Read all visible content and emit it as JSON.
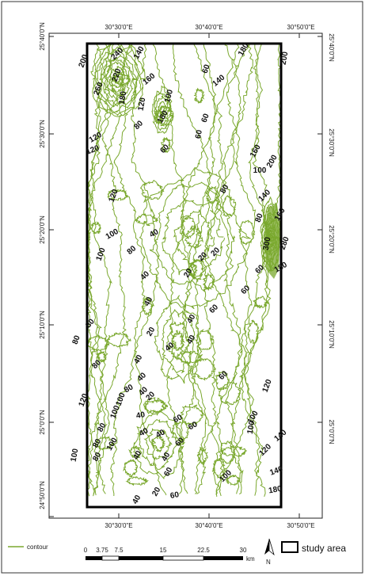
{
  "map": {
    "lon_ticks": [
      "30°30'0\"E",
      "30°40'0\"E",
      "30°50'0\"E"
    ],
    "lat_ticks": [
      "25°40'0\"N",
      "25°30'0\"N",
      "25°20'0\"N",
      "25°10'0\"N",
      "25°0'0\"N",
      "24°50'0\"N"
    ],
    "contour_color": "#7aa82e",
    "contour_labels": [
      {
        "text": "200"
      },
      {
        "text": "240"
      },
      {
        "text": "140"
      },
      {
        "text": "180"
      },
      {
        "text": "200"
      },
      {
        "text": "220"
      },
      {
        "text": "260"
      },
      {
        "text": "180"
      },
      {
        "text": "160"
      },
      {
        "text": "120"
      },
      {
        "text": "60"
      },
      {
        "text": "140"
      },
      {
        "text": "100"
      },
      {
        "text": "180"
      },
      {
        "text": "80"
      },
      {
        "text": "120"
      },
      {
        "text": "120"
      },
      {
        "text": "60"
      },
      {
        "text": "60"
      },
      {
        "text": "60"
      },
      {
        "text": "160"
      },
      {
        "text": "200"
      },
      {
        "text": "100"
      },
      {
        "text": "80"
      },
      {
        "text": "120"
      },
      {
        "text": "140"
      },
      {
        "text": "160"
      },
      {
        "text": "80"
      },
      {
        "text": "100"
      },
      {
        "text": "40"
      },
      {
        "text": "100"
      },
      {
        "text": "80"
      },
      {
        "text": "300"
      },
      {
        "text": "280"
      },
      {
        "text": "20"
      },
      {
        "text": "20"
      },
      {
        "text": "20"
      },
      {
        "text": "60"
      },
      {
        "text": "180"
      },
      {
        "text": "40"
      },
      {
        "text": "40"
      },
      {
        "text": "60"
      },
      {
        "text": "80"
      },
      {
        "text": "60"
      },
      {
        "text": "40"
      },
      {
        "text": "40"
      },
      {
        "text": "20"
      },
      {
        "text": "40"
      },
      {
        "text": "80"
      },
      {
        "text": "40"
      },
      {
        "text": "40"
      },
      {
        "text": "80"
      },
      {
        "text": "60"
      },
      {
        "text": "80"
      },
      {
        "text": "100"
      },
      {
        "text": "120"
      },
      {
        "text": "100"
      },
      {
        "text": "120"
      },
      {
        "text": "40"
      },
      {
        "text": "20"
      },
      {
        "text": "40"
      },
      {
        "text": "60"
      },
      {
        "text": "40"
      },
      {
        "text": "40"
      },
      {
        "text": "60"
      },
      {
        "text": "80"
      },
      {
        "text": "100"
      },
      {
        "text": "100"
      },
      {
        "text": "140"
      },
      {
        "text": "80"
      },
      {
        "text": "80"
      },
      {
        "text": "100"
      },
      {
        "text": "60"
      },
      {
        "text": "40"
      },
      {
        "text": "120"
      },
      {
        "text": "40"
      },
      {
        "text": "60"
      },
      {
        "text": "100"
      },
      {
        "text": "140"
      },
      {
        "text": "180"
      },
      {
        "text": "100"
      },
      {
        "text": "40"
      },
      {
        "text": "20"
      },
      {
        "text": "60"
      }
    ]
  },
  "legend": {
    "contour_label": "contour",
    "scale_ticks": [
      "0",
      "3.75",
      "7.5",
      "15",
      "22.5",
      "30"
    ],
    "scale_unit": "km",
    "north_label": "N",
    "study_area_label": "study area"
  }
}
